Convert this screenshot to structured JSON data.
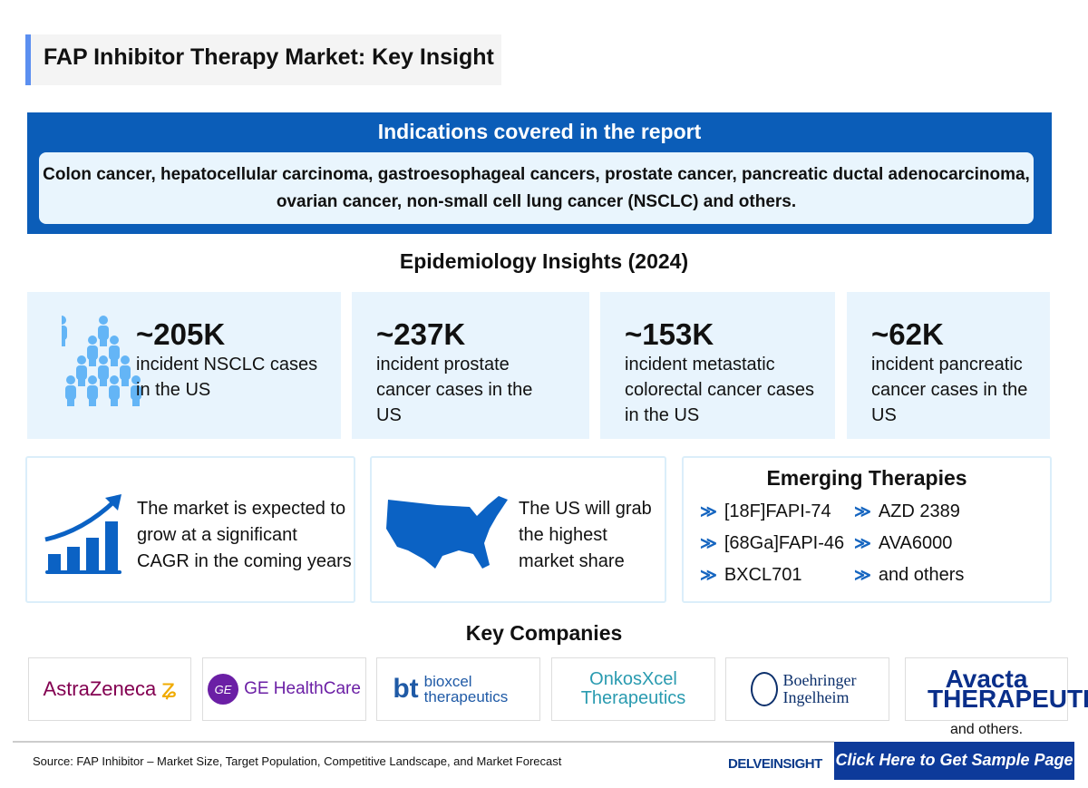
{
  "title": "FAP Inhibitor Therapy Market: Key Insight",
  "indications": {
    "heading": "Indications covered in the report",
    "text": "Colon cancer, hepatocellular carcinoma, gastroesophageal cancers, prostate cancer, pancreatic ductal adenocarcinoma, ovarian cancer, non-small cell lung cancer (NSCLC) and others."
  },
  "epidemiology": {
    "heading": "Epidemiology Insights (2024)",
    "stats": [
      {
        "value": "~205K",
        "text": "incident NSCLC cases in the US"
      },
      {
        "value": "~237K",
        "text": "incident prostate cancer cases in the US"
      },
      {
        "value": "~153K",
        "text": "incident metastatic colorectal cancer cases in the US"
      },
      {
        "value": "~62K",
        "text": "incident pancreatic cancer cases in the US"
      }
    ]
  },
  "market": {
    "growth": "The market is expected to grow at a significant CAGR in the coming years",
    "region": "The US will grab the highest market share"
  },
  "therapies": {
    "heading": "Emerging Therapies",
    "items": [
      "[18F]FAPI-74",
      "AZD 2389",
      "[68Ga]FAPI-46",
      "AVA6000",
      "BXCL701",
      "and others"
    ]
  },
  "companies": {
    "heading": "Key Companies",
    "logos": [
      "AstraZeneca",
      "GE HealthCare",
      "bioxcel therapeutics",
      "OnkosXcel Therapeutics",
      "Boehringer Ingelheim",
      "Avacta THERAPEUTICS"
    ],
    "others": "and others."
  },
  "footer": {
    "source": "Source: FAP Inhibitor – Market Size, Target Population, Competitive Landscape, and Market Forecast",
    "brand": "DELVEINSIGHT",
    "cta": "Click Here to Get Sample Page"
  },
  "colors": {
    "primary": "#0b5db8",
    "light": "#e8f4fd",
    "cta": "#0d3a9a",
    "people": "#64b5f6"
  }
}
